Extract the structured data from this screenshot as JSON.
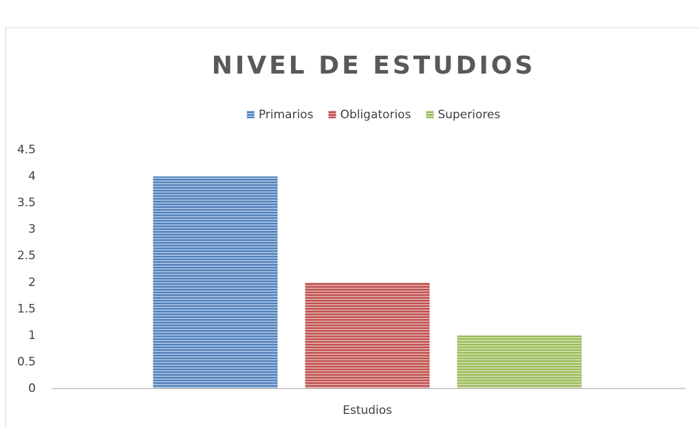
{
  "chart_data": {
    "type": "bar",
    "title": "NIVEL DE ESTUDIOS",
    "categories": [
      "Estudios"
    ],
    "series": [
      {
        "name": "Primarios",
        "color": "#4f81bd",
        "values": [
          4
        ]
      },
      {
        "name": "Obligatorios",
        "color": "#c0504d",
        "values": [
          2
        ]
      },
      {
        "name": "Superiores",
        "color": "#9bbb59",
        "values": [
          1
        ]
      }
    ],
    "ylim": [
      0,
      4.5
    ],
    "yticks": [
      0,
      0.5,
      1,
      1.5,
      2,
      2.5,
      3,
      3.5,
      4,
      4.5
    ],
    "grid": false,
    "legend": "top"
  }
}
